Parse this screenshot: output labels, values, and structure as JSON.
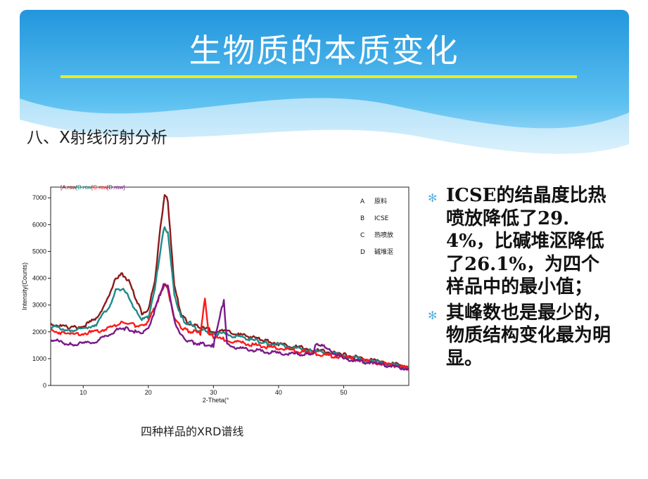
{
  "slide": {
    "title": "生物质的本质变化",
    "section_heading": "八、X射线衍射分析",
    "caption": "四种样品的XRD谱线"
  },
  "bullets": [
    "ICSE的结晶度比热喷放降低了29.4%，比碱堆沤降低了26.1%，为四个样品中的最小值；",
    "其峰数也是最少的，物质结构变化最为明显。"
  ],
  "colors": {
    "banner": "#2fa3e6",
    "underline": "#e6ee1e",
    "bullet_mark": "#5ab0e0",
    "series_A": "#8b1a1a",
    "series_B": "#1f8a8a",
    "series_C": "#ff1a1a",
    "series_D": "#7a1a8a"
  },
  "chart_data": {
    "type": "line",
    "xlabel": "2-Theta(°",
    "ylabel": "Intensity(Counts)",
    "xlim": [
      5,
      60
    ],
    "ylim": [
      0,
      7400
    ],
    "xticks": [
      10,
      20,
      30,
      40,
      50
    ],
    "yticks": [
      0,
      1000,
      2000,
      3000,
      4000,
      5000,
      6000,
      7000
    ],
    "file_tags": [
      "[A.raw",
      "[B.raw",
      "[C.raw",
      "[D.raw]"
    ],
    "legend": [
      {
        "key": "A",
        "label": "原料"
      },
      {
        "key": "B",
        "label": "ICSE"
      },
      {
        "key": "C",
        "label": "热喷放"
      },
      {
        "key": "D",
        "label": "碱堆沤"
      }
    ],
    "series": [
      {
        "key": "A",
        "x": [
          5,
          8,
          10,
          12,
          14,
          15,
          16,
          17,
          18,
          19,
          20,
          21,
          22,
          22.5,
          23,
          23.5,
          24,
          25,
          26,
          27,
          28,
          30,
          32,
          34,
          35,
          38,
          40,
          45,
          50,
          55,
          60
        ],
        "y": [
          2300,
          2150,
          2200,
          2500,
          3300,
          4000,
          4150,
          3900,
          3300,
          2700,
          2800,
          3900,
          6200,
          7100,
          6900,
          5300,
          3700,
          2700,
          2350,
          2250,
          2150,
          2050,
          2000,
          1900,
          1850,
          1700,
          1550,
          1350,
          1150,
          900,
          700
        ]
      },
      {
        "key": "B",
        "x": [
          5,
          8,
          10,
          12,
          14,
          15,
          16,
          17,
          18,
          19,
          20,
          21,
          22,
          22.5,
          23,
          23.5,
          24,
          25,
          26,
          26.6,
          27,
          28,
          30,
          32,
          34,
          35,
          38,
          40,
          45,
          50,
          55,
          60
        ],
        "y": [
          2200,
          2050,
          2100,
          2300,
          2950,
          3550,
          3600,
          3300,
          2800,
          2450,
          2550,
          3600,
          5300,
          5950,
          5700,
          4500,
          3400,
          2550,
          2250,
          2350,
          2150,
          2050,
          1950,
          1900,
          1800,
          1750,
          1600,
          1500,
          1300,
          1100,
          850,
          680
        ]
      },
      {
        "key": "C",
        "x": [
          5,
          8,
          10,
          12,
          14,
          15,
          16,
          17,
          18,
          19,
          20,
          21,
          22,
          22.5,
          23,
          23.5,
          24,
          25,
          26,
          27,
          28,
          28.7,
          29.3,
          30,
          32,
          34,
          38,
          40,
          45,
          50,
          55,
          60
        ],
        "y": [
          2050,
          1900,
          1950,
          2000,
          2150,
          2250,
          2350,
          2300,
          2250,
          2200,
          2400,
          2900,
          3500,
          3750,
          3600,
          3000,
          2500,
          2150,
          2050,
          2000,
          1950,
          3300,
          1900,
          1800,
          1700,
          1600,
          1450,
          1400,
          1200,
          1050,
          850,
          650
        ]
      },
      {
        "key": "D",
        "x": [
          5,
          8,
          10,
          12,
          14,
          15,
          16,
          17,
          18,
          19,
          20,
          21,
          22,
          22.5,
          23,
          23.5,
          24,
          25,
          26,
          27,
          28,
          30,
          31.6,
          32.1,
          34,
          38,
          40,
          45.3,
          45.8,
          50,
          55,
          60
        ],
        "y": [
          1700,
          1550,
          1550,
          1650,
          1900,
          2050,
          2150,
          2100,
          2000,
          1950,
          2150,
          2800,
          3550,
          3800,
          3700,
          3100,
          2450,
          1850,
          1650,
          1600,
          1550,
          1500,
          3200,
          1500,
          1400,
          1250,
          1200,
          1150,
          1600,
          1000,
          800,
          620
        ]
      }
    ]
  }
}
